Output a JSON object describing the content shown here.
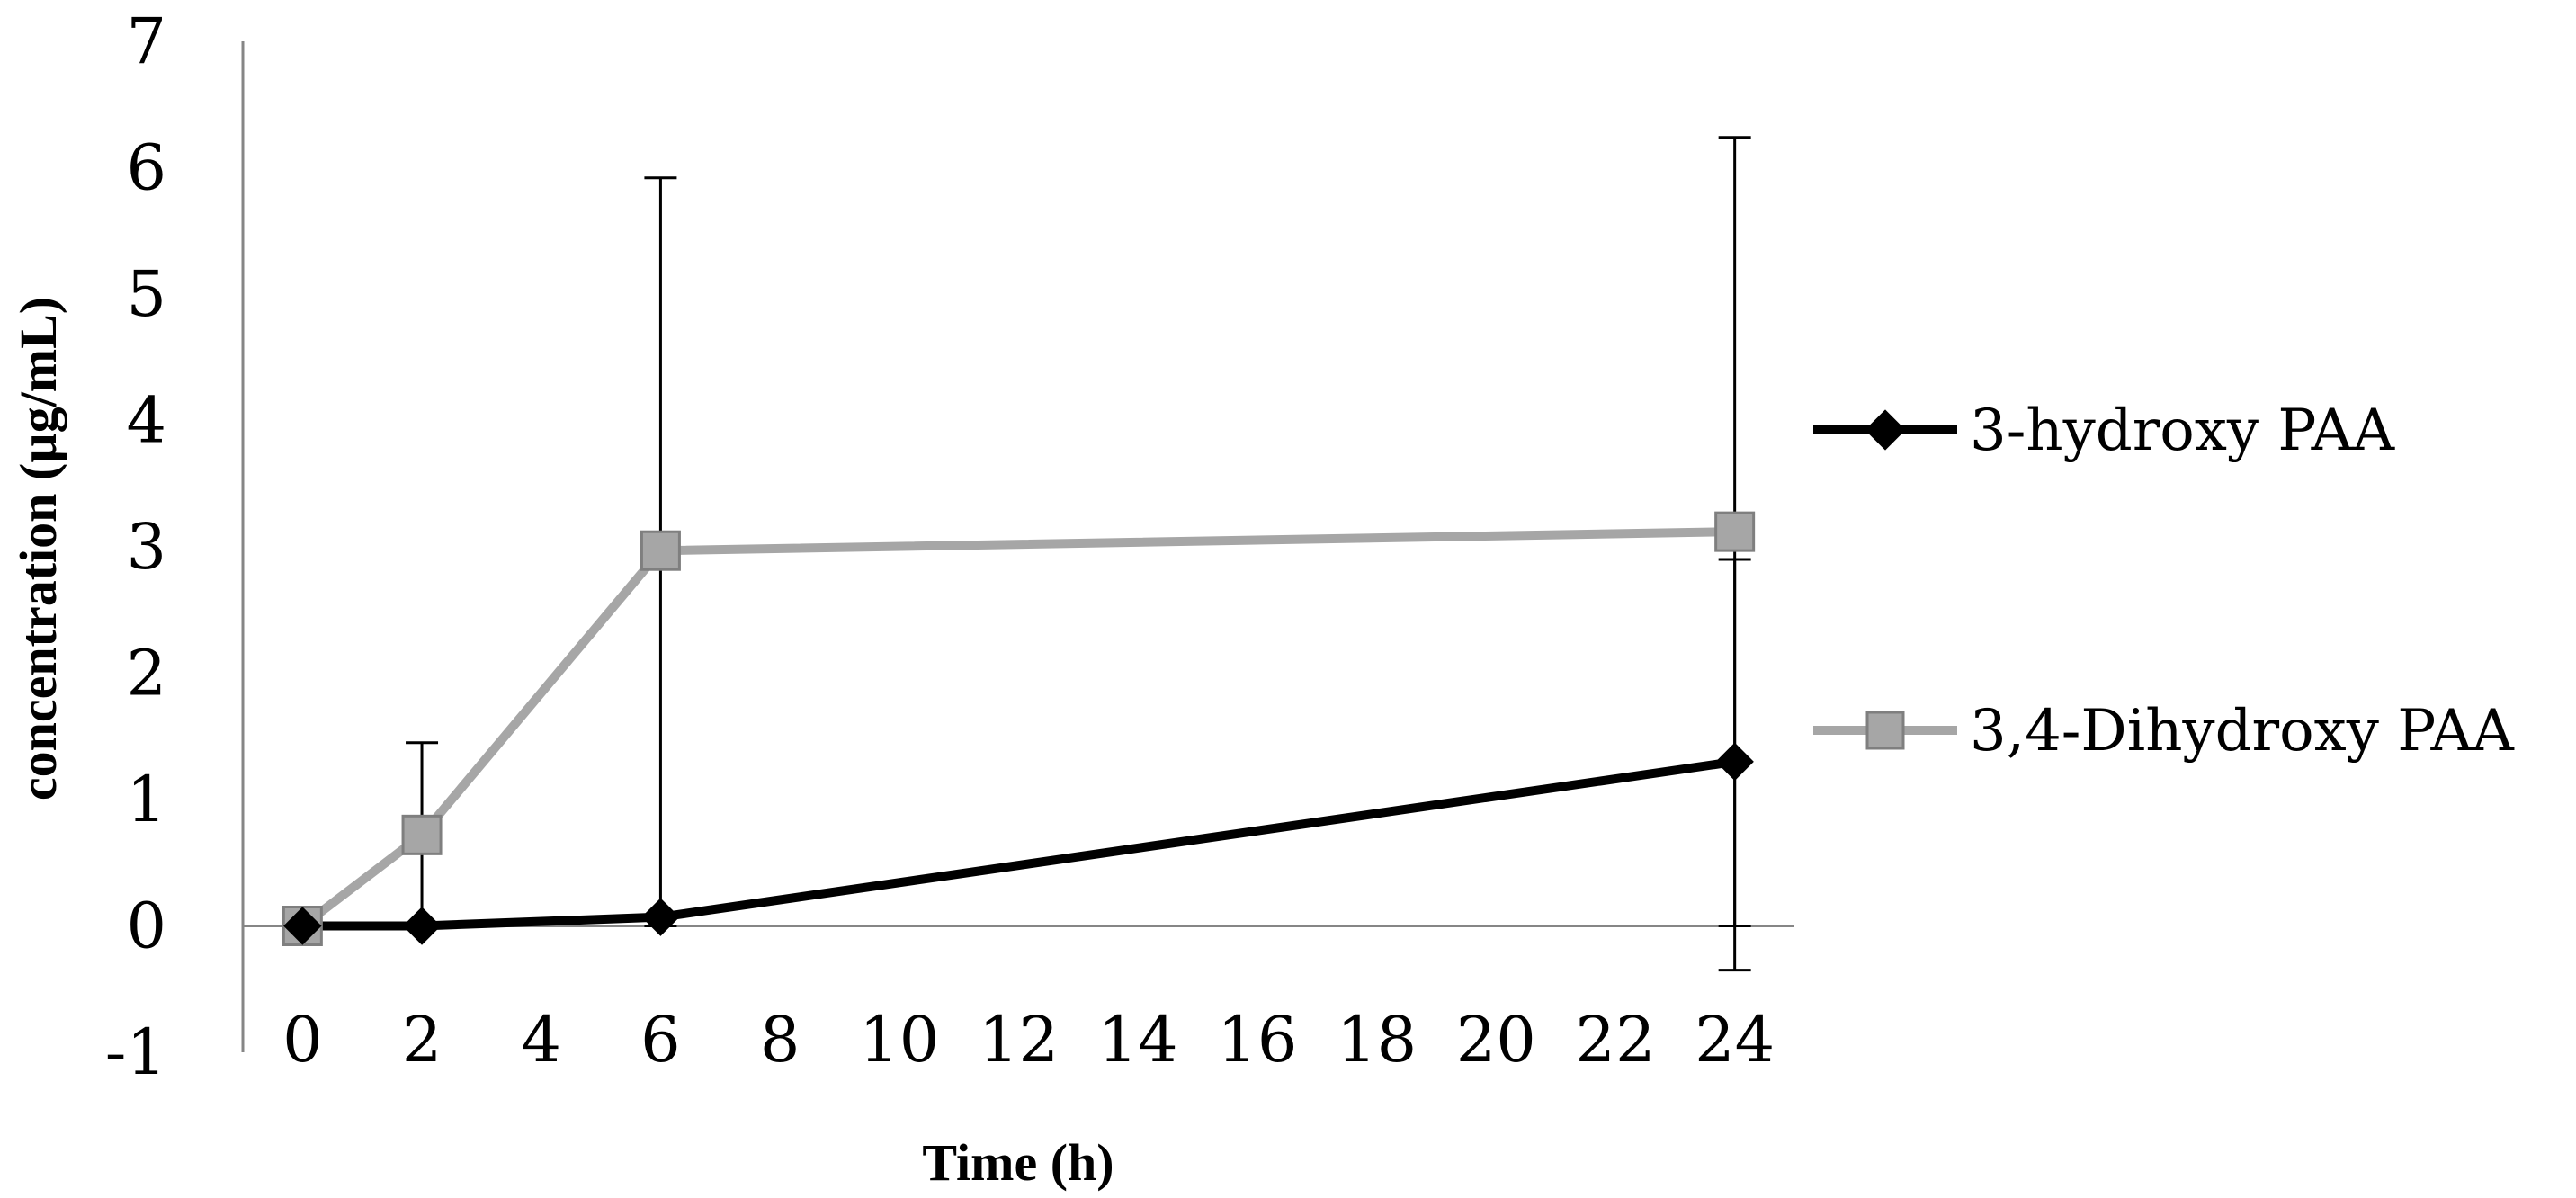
{
  "chart_data": {
    "type": "line",
    "title": "",
    "xlabel": "Time (h)",
    "ylabel": "concentration  (µg/mL)",
    "x": [
      0,
      2,
      6,
      24
    ],
    "x_ticks": [
      "0",
      "2",
      "4",
      "6",
      "8",
      "10",
      "12",
      "14",
      "16",
      "18",
      "20",
      "22",
      "24"
    ],
    "y_ticks": [
      "-1",
      "0",
      "1",
      "2",
      "3",
      "4",
      "5",
      "6",
      "7"
    ],
    "xlim": [
      -1,
      25
    ],
    "ylim": [
      -1,
      7
    ],
    "grid": false,
    "legend_position": "right",
    "series": [
      {
        "name": "3-hydroxy PAA",
        "color": "#000000",
        "marker": "diamond",
        "values": [
          0,
          0,
          0.07,
          1.3
        ],
        "error_plus": [
          0,
          0,
          0,
          1.6
        ],
        "error_minus": [
          0,
          0,
          0,
          1.65
        ]
      },
      {
        "name": "3,4-Dihydroxy PAA",
        "color": "#a6a6a6",
        "marker": "square",
        "values": [
          0,
          0.72,
          2.97,
          3.12
        ],
        "error_plus": [
          0,
          0.73,
          2.95,
          3.12
        ],
        "error_minus": [
          0,
          0.72,
          2.97,
          3.12
        ]
      }
    ]
  }
}
